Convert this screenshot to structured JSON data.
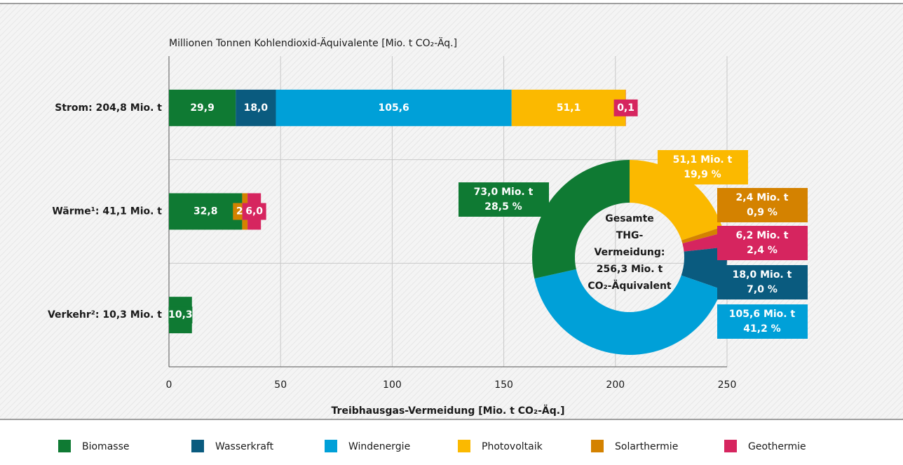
{
  "chart_data": [
    {
      "type": "stacked-barh",
      "subtitle": "Millionen Tonnen Kohlendioxid-Äquivalente [Mio. t CO₂-Äq.]",
      "xlabel": "Treibhausgas-Vermeidung [Mio. t CO₂-Äq.]",
      "categories": [
        "Strom: 204,8 Mio. t",
        "Wärme¹: 41,1 Mio. t",
        "Verkehr²: 10,3 Mio. t"
      ],
      "series": [
        {
          "name": "Biomasse",
          "color": "#0f7a33",
          "values": [
            29.9,
            32.8,
            10.3
          ],
          "value_labels": [
            "29,9",
            "32,8",
            "10,3"
          ]
        },
        {
          "name": "Wasserkraft",
          "color": "#0a5b7f",
          "values": [
            18.0,
            null,
            null
          ],
          "value_labels": [
            "18,0",
            null,
            null
          ]
        },
        {
          "name": "Windenergie",
          "color": "#00a0d8",
          "values": [
            105.6,
            null,
            null
          ],
          "value_labels": [
            "105,6",
            null,
            null
          ]
        },
        {
          "name": "Photovoltaik",
          "color": "#fbb900",
          "values": [
            51.1,
            null,
            null
          ],
          "value_labels": [
            "51,1",
            null,
            null
          ]
        },
        {
          "name": "Solarthermie",
          "color": "#d48200",
          "values": [
            null,
            2.4,
            null
          ],
          "value_labels": [
            null,
            "2,4",
            null
          ]
        },
        {
          "name": "Geothermie",
          "color": "#d6255f",
          "values": [
            0.1,
            6.0,
            null
          ],
          "value_labels": [
            "0,1",
            "6,0",
            null
          ]
        }
      ],
      "xlim": [
        0,
        250
      ],
      "xticks": [
        0,
        50,
        100,
        150,
        200,
        250
      ],
      "grid": true,
      "legend": "bottom"
    },
    {
      "type": "donut",
      "values": [
        51.1,
        2.4,
        6.2,
        18.0,
        105.6,
        73.0
      ],
      "colors": [
        "#fbb900",
        "#d48200",
        "#d6255f",
        "#0a5b7f",
        "#00a0d8",
        "#0f7a33"
      ],
      "value_labels": [
        "51,1 Mio. t",
        "2,4 Mio. t",
        "6,2 Mio. t",
        "18,0 Mio. t",
        "105,6 Mio. t",
        "73,0 Mio. t"
      ],
      "percents": [
        19.9,
        0.9,
        2.4,
        7.0,
        41.2,
        28.5
      ],
      "percent_labels": [
        "19,9 %",
        "0,9 %",
        "2,4 %",
        "7,0 %",
        "41,2 %",
        "28,5 %"
      ],
      "center_text": [
        "Gesamte",
        "THG-",
        "Vermeidung:",
        "256,3 Mio. t",
        "CO₂-Äquivalent"
      ]
    }
  ]
}
